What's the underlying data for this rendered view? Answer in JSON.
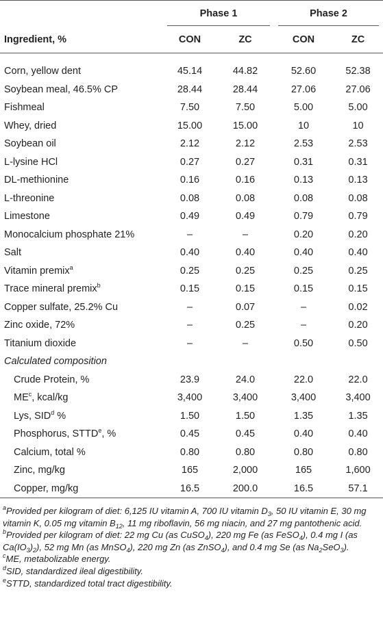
{
  "table": {
    "phase_headers": [
      "Phase 1",
      "Phase 2"
    ],
    "columns": [
      "Ingredient, %",
      "CON",
      "ZC",
      "CON",
      "ZC"
    ],
    "rows": [
      {
        "label": [
          {
            "text": "Corn, yellow dent"
          }
        ],
        "values": [
          "45.14",
          "44.82",
          "52.60",
          "52.38"
        ]
      },
      {
        "label": [
          {
            "text": "Soybean meal, 46.5% CP"
          }
        ],
        "values": [
          "28.44",
          "28.44",
          "27.06",
          "27.06"
        ]
      },
      {
        "label": [
          {
            "text": "Fishmeal"
          }
        ],
        "values": [
          "7.50",
          "7.50",
          "5.00",
          "5.00"
        ]
      },
      {
        "label": [
          {
            "text": "Whey, dried"
          }
        ],
        "values": [
          "15.00",
          "15.00",
          "10",
          "10"
        ]
      },
      {
        "label": [
          {
            "text": "Soybean oil"
          }
        ],
        "values": [
          "2.12",
          "2.12",
          "2.53",
          "2.53"
        ]
      },
      {
        "label": [
          {
            "text": "L-lysine HCl"
          }
        ],
        "values": [
          "0.27",
          "0.27",
          "0.31",
          "0.31"
        ]
      },
      {
        "label": [
          {
            "text": "DL-methionine"
          }
        ],
        "values": [
          "0.16",
          "0.16",
          "0.13",
          "0.13"
        ]
      },
      {
        "label": [
          {
            "text": "L-threonine"
          }
        ],
        "values": [
          "0.08",
          "0.08",
          "0.08",
          "0.08"
        ]
      },
      {
        "label": [
          {
            "text": "Limestone"
          }
        ],
        "values": [
          "0.49",
          "0.49",
          "0.79",
          "0.79"
        ]
      },
      {
        "label": [
          {
            "text": "Monocalcium phosphate 21%"
          }
        ],
        "values": [
          "–",
          "–",
          "0.20",
          "0.20"
        ]
      },
      {
        "label": [
          {
            "text": "Salt"
          }
        ],
        "values": [
          "0.40",
          "0.40",
          "0.40",
          "0.40"
        ]
      },
      {
        "label": [
          {
            "text": "Vitamin premix"
          },
          {
            "sup": "a"
          }
        ],
        "values": [
          "0.25",
          "0.25",
          "0.25",
          "0.25"
        ]
      },
      {
        "label": [
          {
            "text": "Trace mineral premix"
          },
          {
            "sup": "b"
          }
        ],
        "values": [
          "0.15",
          "0.15",
          "0.15",
          "0.15"
        ]
      },
      {
        "label": [
          {
            "text": "Copper sulfate, 25.2% Cu"
          }
        ],
        "values": [
          "–",
          "0.07",
          "–",
          "0.02"
        ]
      },
      {
        "label": [
          {
            "text": "Zinc oxide, 72%"
          }
        ],
        "values": [
          "–",
          "0.25",
          "–",
          "0.20"
        ]
      },
      {
        "label": [
          {
            "text": "Titanium dioxide"
          }
        ],
        "values": [
          "–",
          "–",
          "0.50",
          "0.50"
        ]
      }
    ],
    "section": "Calculated composition",
    "composition_rows": [
      {
        "label": [
          {
            "text": "Crude Protein, %"
          }
        ],
        "values": [
          "23.9",
          "24.0",
          "22.0",
          "22.0"
        ]
      },
      {
        "label": [
          {
            "text": "ME"
          },
          {
            "sup": "c"
          },
          {
            "text": ", kcal/kg"
          }
        ],
        "values": [
          "3,400",
          "3,400",
          "3,400",
          "3,400"
        ]
      },
      {
        "label": [
          {
            "text": "Lys, SID"
          },
          {
            "sup": "d"
          },
          {
            "text": " %"
          }
        ],
        "values": [
          "1.50",
          "1.50",
          "1.35",
          "1.35"
        ]
      },
      {
        "label": [
          {
            "text": "Phosphorus, STTD"
          },
          {
            "sup": "e"
          },
          {
            "text": ", %"
          }
        ],
        "values": [
          "0.45",
          "0.45",
          "0.40",
          "0.40"
        ]
      },
      {
        "label": [
          {
            "text": "Calcium, total %"
          }
        ],
        "values": [
          "0.80",
          "0.80",
          "0.80",
          "0.80"
        ]
      },
      {
        "label": [
          {
            "text": "Zinc, mg/kg"
          }
        ],
        "values": [
          "165",
          "2,000",
          "165",
          "1,600"
        ]
      },
      {
        "label": [
          {
            "text": "Copper, mg/kg"
          }
        ],
        "values": [
          "16.5",
          "200.0",
          "16.5",
          "57.1"
        ]
      }
    ]
  },
  "footnotes": [
    [
      {
        "sup": "a"
      },
      {
        "text": "Provided per kilogram of diet: 6,125 IU vitamin A, 700 IU vitamin D"
      },
      {
        "sub": "3"
      },
      {
        "text": ", 50 IU vitamin E, 30 mg vitamin K, 0.05 mg vitamin B"
      },
      {
        "sub": "12"
      },
      {
        "text": ", 11 mg riboflavin, 56 mg niacin, and 27 mg pantothenic acid."
      }
    ],
    [
      {
        "sup": "b"
      },
      {
        "text": "Provided per kilogram of diet: 22 mg Cu (as CuSO"
      },
      {
        "sub": "4"
      },
      {
        "text": "), 220 mg Fe (as FeSO"
      },
      {
        "sub": "4"
      },
      {
        "text": "), 0.4 mg I (as Ca(IO"
      },
      {
        "sub": "3"
      },
      {
        "text": ")"
      },
      {
        "sub": "2"
      },
      {
        "text": "), 52 mg Mn (as MnSO"
      },
      {
        "sub": "4"
      },
      {
        "text": "), 220 mg Zn (as ZnSO"
      },
      {
        "sub": "4"
      },
      {
        "text": "), and 0.4 mg Se (as Na"
      },
      {
        "sub": "2"
      },
      {
        "text": "SeO"
      },
      {
        "sub": "3"
      },
      {
        "text": ")."
      }
    ],
    [
      {
        "sup": "c"
      },
      {
        "text": "ME, metabolizable energy."
      }
    ],
    [
      {
        "sup": "d"
      },
      {
        "text": "SID, standardized ileal digestibility."
      }
    ],
    [
      {
        "sup": "e"
      },
      {
        "text": "STTD, standardized total tract digestibility."
      }
    ]
  ]
}
